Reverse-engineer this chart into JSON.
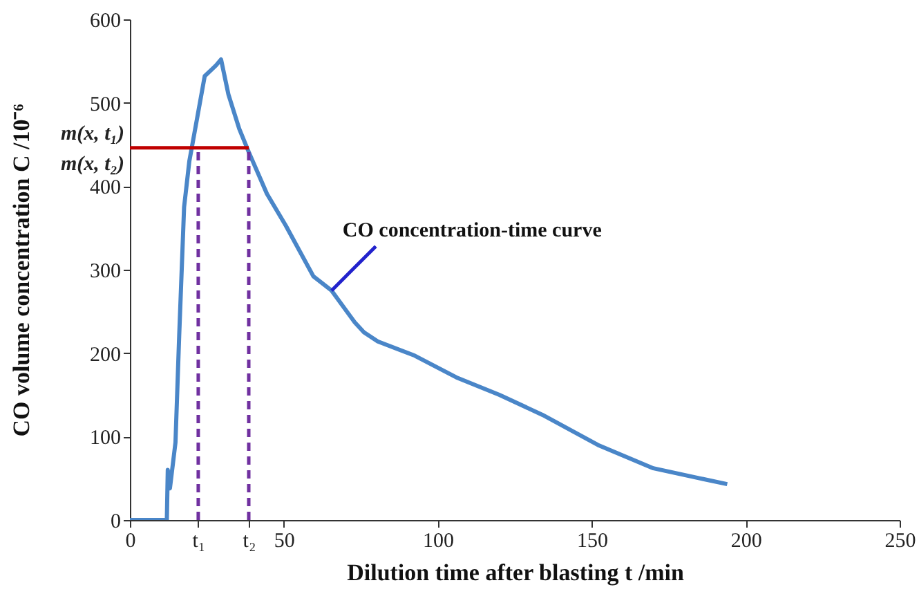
{
  "chart_data": {
    "type": "line",
    "xlabel": "Dilution time after blasting t /min",
    "ylabel": "CO volume concentration C /10⁻⁶",
    "xlim": [
      0,
      250
    ],
    "ylim": [
      0,
      600
    ],
    "xticks": [
      0,
      {
        "value": 22.2,
        "label": "t₁"
      },
      {
        "value": 38.6,
        "label": "t₂"
      },
      50,
      100,
      150,
      200,
      250
    ],
    "yticks": [
      0,
      100,
      200,
      300,
      400,
      500,
      600
    ],
    "grid": false,
    "marker": "none",
    "series": [
      {
        "color": "#4a86c8",
        "line_style": "solid",
        "x": [
          0,
          12,
          12.3,
          13,
          14.8,
          16,
          17.6,
          19.3,
          22,
          24.3,
          26.6,
          28,
          29.6,
          32,
          35.5,
          38.6,
          44.5,
          50.6,
          59.6,
          65.5,
          73,
          76,
          80.5,
          92.5,
          106,
          120,
          134,
          152,
          170,
          185,
          194
        ],
        "values": [
          0,
          0,
          60,
          38,
          93,
          220,
          375,
          430,
          485,
          532,
          540,
          545,
          552,
          510,
          469,
          441,
          391,
          353,
          292,
          275,
          237,
          225,
          214,
          197,
          171,
          150,
          126,
          90,
          62,
          50,
          43
        ]
      },
      {
        "color": "#c00000",
        "line_style": "solid",
        "x": [
          0,
          38.6
        ],
        "values": [
          446,
          446
        ]
      },
      {
        "color": "#7030a0",
        "line_style": "dashed",
        "x": [
          22.2,
          22.2
        ],
        "values": [
          0,
          446
        ]
      },
      {
        "color": "#7030a0",
        "line_style": "dashed",
        "x": [
          38.6,
          38.6
        ],
        "values": [
          0,
          446
        ]
      }
    ],
    "annotations": [
      "m(x, t₁)",
      "m(x, t₂)",
      {
        "text": "CO concentration-time curve",
        "x": 65.5,
        "y": 275
      }
    ]
  }
}
